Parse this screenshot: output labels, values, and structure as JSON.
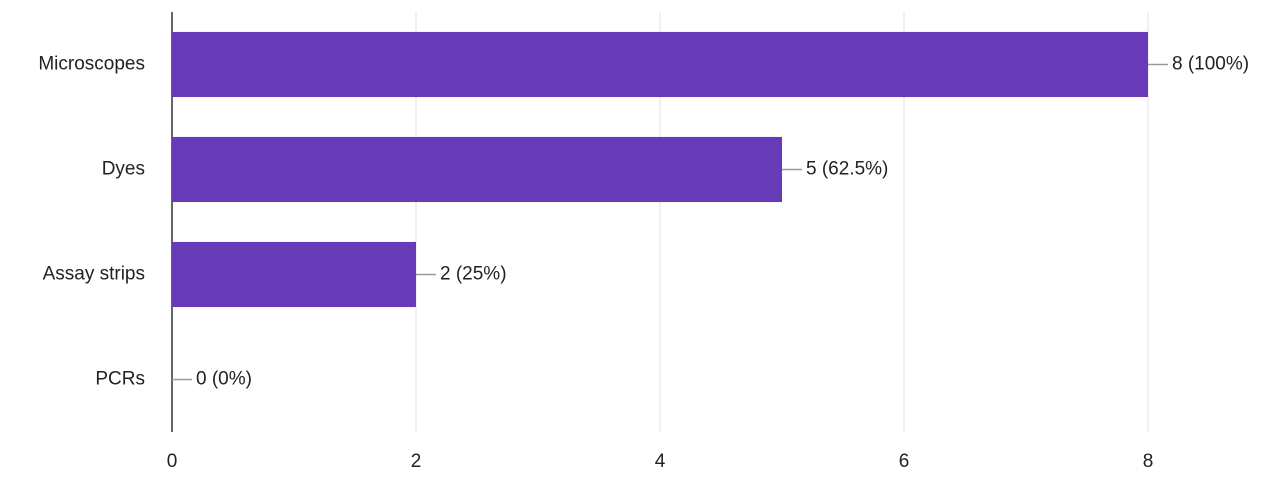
{
  "chart_data": {
    "type": "bar",
    "orientation": "horizontal",
    "categories": [
      "Microscopes",
      "Dyes",
      "Assay strips",
      "PCRs"
    ],
    "values": [
      8,
      5,
      2,
      0
    ],
    "value_labels": [
      "8 (100%)",
      "5 (62.5%)",
      "2 (25%)",
      "0 (0%)"
    ],
    "color": "#673ab7",
    "xlim": [
      0,
      8
    ],
    "xticks": [
      0,
      2,
      4,
      6,
      8
    ],
    "grid": true
  }
}
